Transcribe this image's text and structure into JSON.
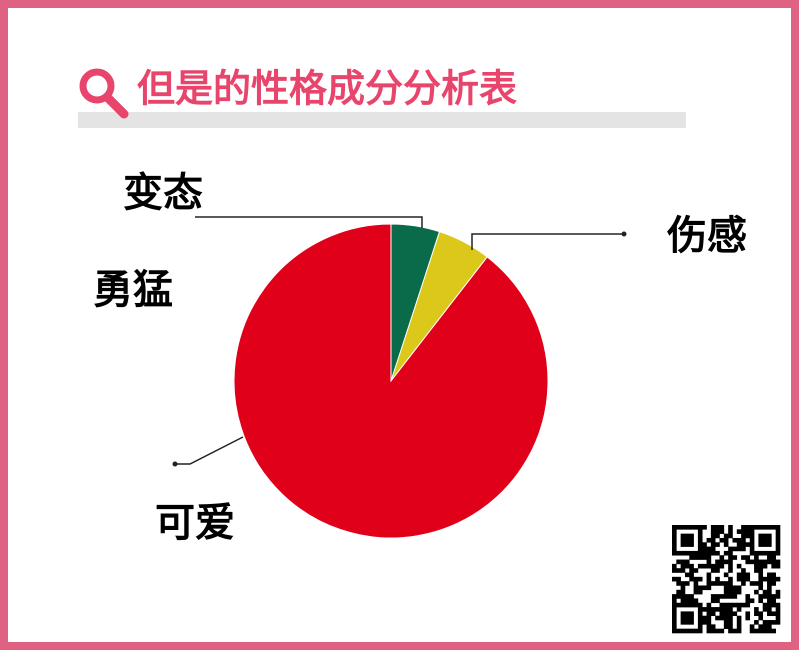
{
  "chart_data": {
    "type": "pie",
    "title": "但是的性格成分分析表",
    "categories": [
      "变态",
      "伤感",
      "勇猛",
      "可爱"
    ],
    "values": [
      5,
      5.5,
      0,
      89.5
    ],
    "colors": [
      "#0a6b4a",
      "#dcc81a",
      "#e0a020",
      "#e0001a"
    ]
  }
}
